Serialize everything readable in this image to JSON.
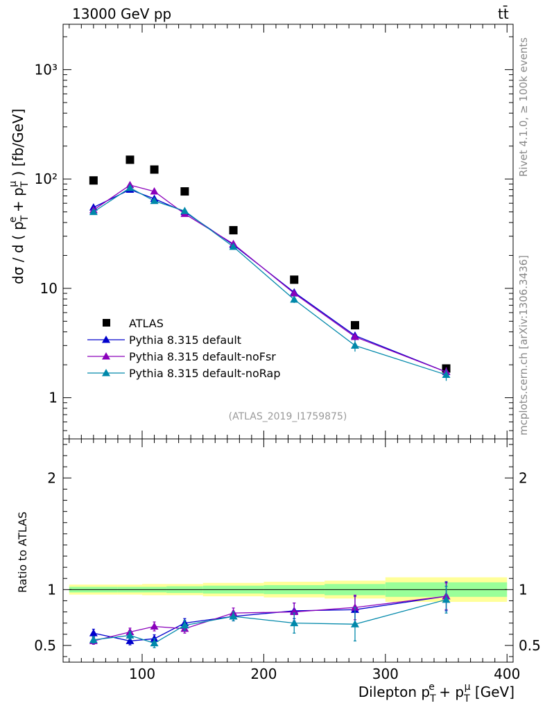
{
  "header": {
    "energy_label": "13000 GeV pp",
    "process_label": "tt̄"
  },
  "side_labels": {
    "rivet": "Rivet 4.1.0, ≥ 100k events",
    "mcplots": "mcplots.cern.ch [arXiv:1306.3436]"
  },
  "analysis_id": "(ATLAS_2019_I1759875)",
  "chart_data": [
    {
      "panel": "main",
      "type": "line",
      "ylabel": "dσ / d ( p_T^e + p_T^μ ) [fb/GeV]",
      "yscale": "log",
      "ylim": [
        0.42,
        2600
      ],
      "xlim": [
        35,
        405
      ],
      "ytick_labels": [
        "1",
        "10",
        "10²",
        "10³"
      ],
      "ytick_values": [
        1,
        10,
        100,
        1000
      ],
      "legend": [
        "ATLAS",
        "Pythia 8.315 default",
        "Pythia 8.315 default-noFsr",
        "Pythia 8.315 default-noRap"
      ],
      "series": [
        {
          "name": "ATLAS",
          "color": "#000000",
          "marker": "square",
          "x": [
            60,
            90,
            110,
            135,
            175,
            225,
            275,
            350
          ],
          "y": [
            97,
            150,
            122,
            77,
            34,
            12,
            4.6,
            1.85
          ]
        },
        {
          "name": "Pythia 8.315 default",
          "color": "#0000cc",
          "marker": "triangle",
          "x": [
            60,
            90,
            110,
            135,
            175,
            225,
            275,
            350
          ],
          "y": [
            55,
            80,
            66,
            50,
            25,
            9.2,
            3.7,
            1.72
          ],
          "err": [
            0.03,
            0.03,
            0.03,
            0.04,
            0.05,
            0.06,
            0.08,
            0.1
          ]
        },
        {
          "name": "Pythia 8.315 default-noFsr",
          "color": "#8a00bb",
          "marker": "triangle",
          "x": [
            60,
            90,
            110,
            135,
            175,
            225,
            275,
            350
          ],
          "y": [
            52,
            88,
            77,
            48,
            25.5,
            9.0,
            3.6,
            1.72
          ],
          "err": [
            0.03,
            0.03,
            0.03,
            0.04,
            0.05,
            0.07,
            0.08,
            0.1
          ]
        },
        {
          "name": "Pythia 8.315 default-noRap",
          "color": "#0088aa",
          "marker": "triangle",
          "x": [
            60,
            90,
            110,
            135,
            175,
            225,
            275,
            350
          ],
          "y": [
            50,
            83,
            63,
            51,
            24,
            7.9,
            3.0,
            1.62
          ],
          "err": [
            0.03,
            0.03,
            0.03,
            0.04,
            0.05,
            0.07,
            0.12,
            0.12
          ]
        }
      ]
    },
    {
      "panel": "ratio",
      "type": "line",
      "ylabel": "Ratio to ATLAS",
      "xlabel": "Dilepton p_T^e + p_T^μ [GeV]",
      "ylim": [
        0.35,
        2.35
      ],
      "xlim": [
        35,
        405
      ],
      "xtick_labels": [
        "100",
        "200",
        "300",
        "400"
      ],
      "xtick_values": [
        100,
        200,
        300,
        400
      ],
      "ytick_labels": [
        "0.5",
        "1",
        "2"
      ],
      "ytick_values": [
        0.5,
        1,
        2
      ],
      "bands": {
        "edges": [
          40,
          80,
          100,
          120,
          150,
          200,
          250,
          300,
          400
        ],
        "yellow_half_width": [
          0.045,
          0.045,
          0.05,
          0.05,
          0.06,
          0.07,
          0.08,
          0.11
        ],
        "green_half_width": [
          0.025,
          0.025,
          0.025,
          0.03,
          0.035,
          0.04,
          0.05,
          0.065
        ]
      },
      "series": [
        {
          "name": "Pythia 8.315 default",
          "color": "#0000cc",
          "x": [
            60,
            90,
            110,
            135,
            175,
            225,
            275,
            350
          ],
          "y": [
            0.61,
            0.54,
            0.56,
            0.7,
            0.76,
            0.81,
            0.82,
            0.94
          ],
          "err": [
            0.035,
            0.035,
            0.035,
            0.04,
            0.04,
            0.07,
            0.12,
            0.13
          ]
        },
        {
          "name": "Pythia 8.315 default-noFsr",
          "color": "#8a00bb",
          "x": [
            60,
            90,
            110,
            135,
            175,
            225,
            275,
            350
          ],
          "y": [
            0.54,
            0.62,
            0.67,
            0.65,
            0.79,
            0.8,
            0.84,
            0.94
          ],
          "err": [
            0.03,
            0.035,
            0.04,
            0.04,
            0.045,
            0.08,
            0.11,
            0.12
          ]
        },
        {
          "name": "Pythia 8.315 default-noRap",
          "color": "#0088aa",
          "x": [
            60,
            90,
            110,
            135,
            175,
            225,
            275,
            350
          ],
          "y": [
            0.55,
            0.59,
            0.52,
            0.68,
            0.76,
            0.7,
            0.69,
            0.91
          ],
          "err": [
            0.03,
            0.035,
            0.04,
            0.045,
            0.04,
            0.09,
            0.15,
            0.12
          ]
        }
      ]
    }
  ]
}
